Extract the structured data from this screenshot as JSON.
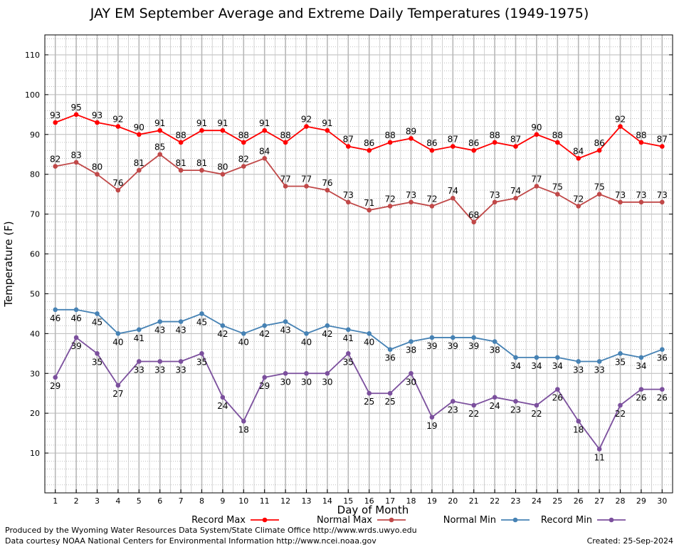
{
  "colors": {
    "record_max": "#ff0000",
    "normal_max": "#c04848",
    "normal_min": "#4682b4",
    "record_min": "#7b4f9d"
  },
  "footer": {
    "produced_by": "Produced by the Wyoming Water Resources Data System/State Climate Office http://www.wrds.uwyo.edu",
    "courtesy": "Data courtesy NOAA National Centers for Environmental Information http://www.ncei.noaa.gov",
    "created": "Created:  25-Sep-2024"
  },
  "chart_data": {
    "type": "line",
    "title": "JAY EM September Average and Extreme Daily Temperatures (1949-1975)",
    "xlabel": "Day of Month",
    "ylabel": "Temperature (F)",
    "xlim": [
      0.5,
      30.5
    ],
    "ylim": [
      0,
      115
    ],
    "yticks": [
      10,
      20,
      30,
      40,
      50,
      60,
      70,
      80,
      90,
      100,
      110
    ],
    "grid": true,
    "legend_position": "bottom",
    "x": [
      1,
      2,
      3,
      4,
      5,
      6,
      7,
      8,
      9,
      10,
      11,
      12,
      13,
      14,
      15,
      16,
      17,
      18,
      19,
      20,
      21,
      22,
      23,
      24,
      25,
      26,
      27,
      28,
      29,
      30
    ],
    "series": [
      {
        "name": "Record Max",
        "color_key": "record_max",
        "label_pos": "above",
        "values": [
          93,
          95,
          93,
          92,
          90,
          91,
          88,
          91,
          91,
          88,
          91,
          88,
          92,
          91,
          87,
          86,
          88,
          89,
          86,
          87,
          86,
          88,
          87,
          90,
          88,
          84,
          86,
          92,
          88,
          87
        ]
      },
      {
        "name": "Normal Max",
        "color_key": "normal_max",
        "label_pos": "above",
        "values": [
          82,
          83,
          80,
          76,
          81,
          85,
          81,
          81,
          80,
          82,
          84,
          77,
          77,
          76,
          73,
          71,
          72,
          73,
          72,
          74,
          68,
          73,
          74,
          77,
          75,
          72,
          75,
          73,
          73,
          73
        ]
      },
      {
        "name": "Normal Min",
        "color_key": "normal_min",
        "label_pos": "below",
        "values": [
          46,
          46,
          45,
          40,
          41,
          43,
          43,
          45,
          42,
          40,
          42,
          43,
          40,
          42,
          41,
          40,
          36,
          38,
          39,
          39,
          39,
          38,
          34,
          34,
          34,
          33,
          33,
          35,
          34,
          36
        ]
      },
      {
        "name": "Record Min",
        "color_key": "record_min",
        "label_pos": "below",
        "values": [
          29,
          39,
          35,
          27,
          33,
          33,
          33,
          35,
          24,
          18,
          29,
          30,
          30,
          30,
          35,
          25,
          25,
          30,
          19,
          23,
          22,
          24,
          23,
          22,
          26,
          18,
          11,
          22,
          26,
          26
        ]
      }
    ]
  }
}
